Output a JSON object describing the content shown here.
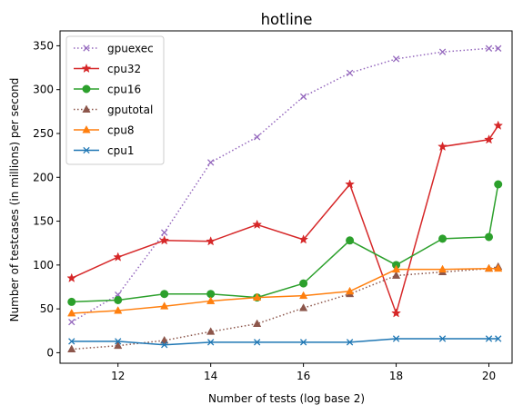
{
  "chart_data": {
    "type": "line",
    "title": "hotline",
    "xlabel": "Number of tests (log base 2)",
    "ylabel": "Number of testcases (in millions) per second",
    "xlim": [
      10.75,
      20.5
    ],
    "ylim": [
      -12,
      367
    ],
    "xticks": [
      12,
      14,
      16,
      18,
      20
    ],
    "yticks": [
      0,
      50,
      100,
      150,
      200,
      250,
      300,
      350
    ],
    "grid": false,
    "legend_position": "upper-left",
    "series": [
      {
        "name": "gpuexec",
        "color": "#9467bd",
        "linestyle": "dotted",
        "marker": "x",
        "x": [
          11,
          12,
          13,
          14,
          15,
          16,
          17,
          18,
          19,
          20,
          20.2
        ],
        "y": [
          35,
          66,
          137,
          217,
          246,
          292,
          319,
          335,
          343,
          347,
          347
        ]
      },
      {
        "name": "cpu32",
        "color": "#d62728",
        "linestyle": "solid",
        "marker": "star",
        "x": [
          11,
          12,
          13,
          14,
          15,
          16,
          17,
          18,
          19,
          20,
          20.2
        ],
        "y": [
          85,
          109,
          128,
          127,
          146,
          129,
          192,
          45,
          235,
          243,
          259
        ]
      },
      {
        "name": "cpu16",
        "color": "#2ca02c",
        "linestyle": "solid",
        "marker": "circle",
        "x": [
          11,
          12,
          13,
          14,
          15,
          16,
          17,
          18,
          19,
          20,
          20.2
        ],
        "y": [
          58,
          60,
          67,
          67,
          63,
          79,
          128,
          100,
          130,
          132,
          192
        ]
      },
      {
        "name": "gputotal",
        "color": "#8c564b",
        "linestyle": "dotted",
        "marker": "triangle",
        "x": [
          11,
          12,
          13,
          14,
          15,
          16,
          17,
          18,
          19,
          20,
          20.2
        ],
        "y": [
          4,
          8,
          14,
          24,
          33,
          51,
          67,
          88,
          92,
          96,
          98
        ]
      },
      {
        "name": "cpu8",
        "color": "#ff7f0e",
        "linestyle": "solid",
        "marker": "triangle",
        "x": [
          11,
          12,
          13,
          14,
          15,
          16,
          17,
          18,
          19,
          20,
          20.2
        ],
        "y": [
          45,
          48,
          53,
          59,
          63,
          65,
          70,
          95,
          95,
          96,
          96
        ]
      },
      {
        "name": "cpu1",
        "color": "#1f77b4",
        "linestyle": "solid",
        "marker": "x",
        "x": [
          11,
          12,
          13,
          14,
          15,
          16,
          17,
          18,
          19,
          20,
          20.2
        ],
        "y": [
          13,
          13,
          9,
          12,
          12,
          12,
          12,
          16,
          16,
          16,
          16
        ]
      }
    ]
  }
}
